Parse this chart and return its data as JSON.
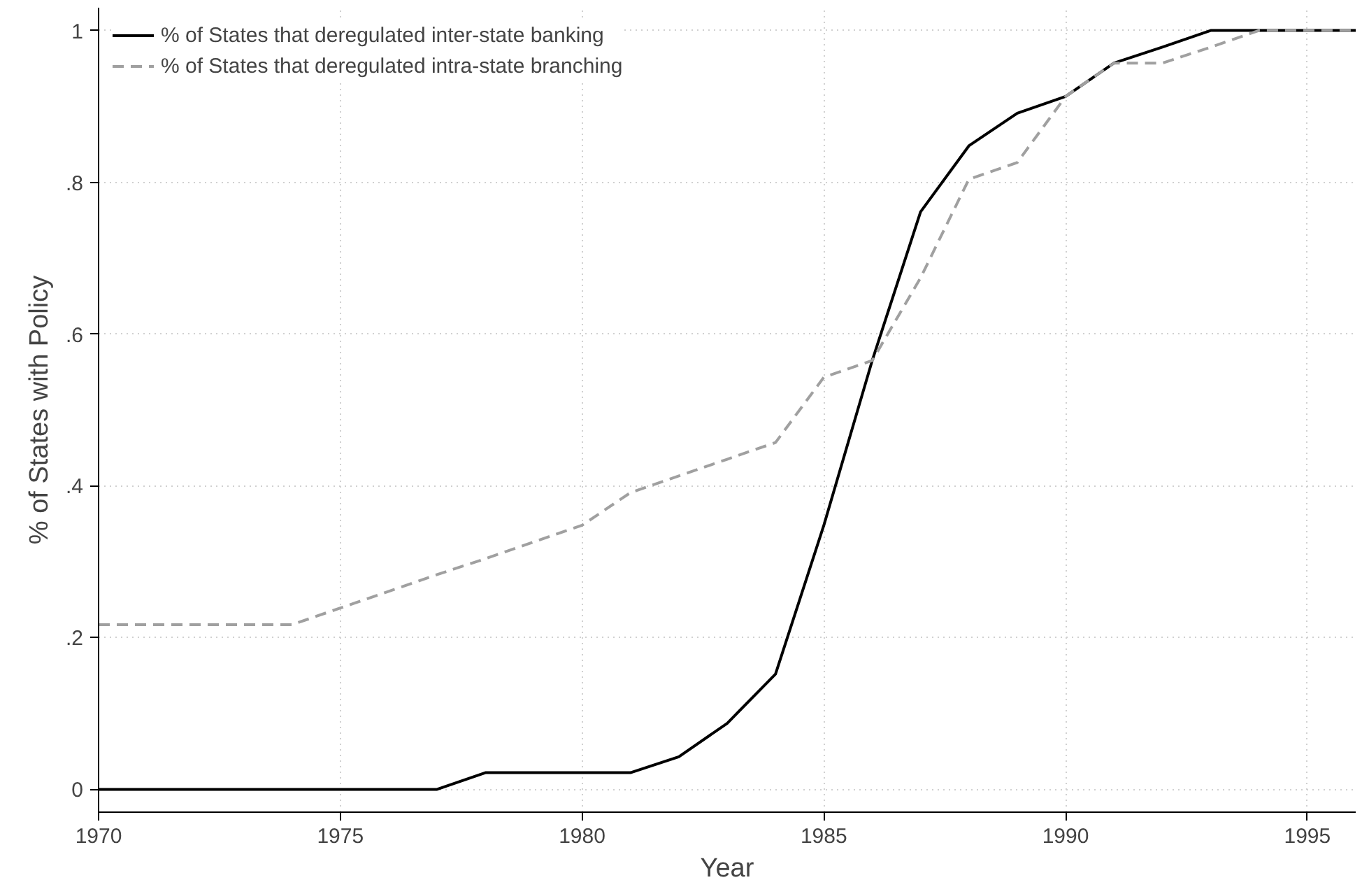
{
  "chart_data": {
    "type": "line",
    "xlabel": "Year",
    "ylabel": "% of States with Policy",
    "x": [
      1970,
      1971,
      1972,
      1973,
      1974,
      1975,
      1976,
      1977,
      1978,
      1979,
      1980,
      1981,
      1982,
      1983,
      1984,
      1985,
      1986,
      1987,
      1988,
      1989,
      1990,
      1991,
      1992,
      1993,
      1994,
      1995,
      1996
    ],
    "series": [
      {
        "name": "% of States that deregulated inter-state banking",
        "color": "#000000",
        "line_style": "solid",
        "values": [
          0,
          0,
          0,
          0,
          0,
          0,
          0,
          0,
          0.022,
          0.022,
          0.022,
          0.022,
          0.043,
          0.087,
          0.152,
          0.348,
          0.565,
          0.761,
          0.848,
          0.891,
          0.913,
          0.957,
          0.978,
          1,
          1,
          1,
          1
        ]
      },
      {
        "name": "% of States that deregulated intra-state branching",
        "color": "#a0a0a0",
        "line_style": "dashed",
        "values": [
          0.217,
          0.217,
          0.217,
          0.217,
          0.217,
          0.239,
          0.261,
          0.283,
          0.304,
          0.326,
          0.348,
          0.391,
          0.413,
          0.435,
          0.457,
          0.543,
          0.565,
          0.674,
          0.804,
          0.826,
          0.913,
          0.957,
          0.957,
          0.978,
          1,
          1,
          1
        ]
      }
    ],
    "xlim": [
      1970,
      1996
    ],
    "xticks": [
      1970,
      1975,
      1980,
      1985,
      1990,
      1995
    ],
    "ylim": [
      -0.03,
      1.03
    ],
    "yticks": [
      {
        "value": 0,
        "label": "0"
      },
      {
        "value": 0.2,
        "label": ".2"
      },
      {
        "value": 0.4,
        "label": ".4"
      },
      {
        "value": 0.6,
        "label": ".6"
      },
      {
        "value": 0.8,
        "label": ".8"
      },
      {
        "value": 1,
        "label": "1"
      }
    ],
    "grid": true,
    "legend": "top left",
    "marker": "none"
  }
}
